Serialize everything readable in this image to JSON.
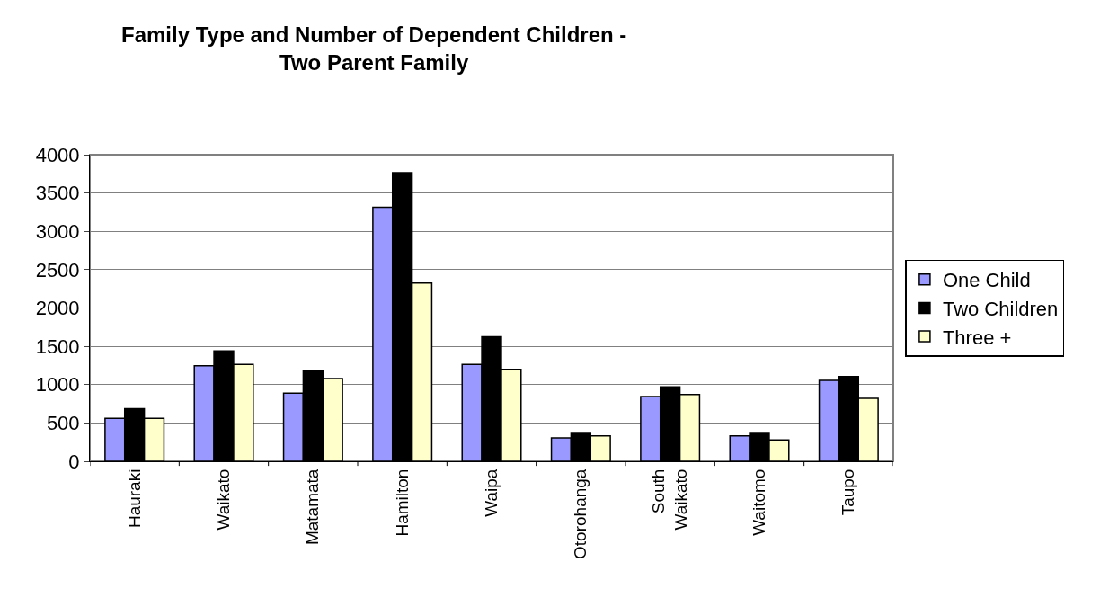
{
  "chart_data": {
    "type": "bar",
    "title": "Family Type and Number of Dependent Children -\nTwo Parent Family",
    "categories": [
      "Hauraki",
      "Waikato",
      "Matamata",
      "Hamilton",
      "Waipa",
      "Otorohanga",
      "South\nWaikato",
      "Waitomo",
      "Taupo"
    ],
    "series": [
      {
        "name": "One Child",
        "color": "#9999ff",
        "values": [
          560,
          1245,
          890,
          3315,
          1265,
          305,
          845,
          330,
          1055
        ]
      },
      {
        "name": "Two Children",
        "color": "#000000",
        "values": [
          685,
          1440,
          1175,
          3765,
          1625,
          375,
          970,
          375,
          1105
        ]
      },
      {
        "name": "Three +",
        "color": "#ffffcc",
        "values": [
          560,
          1265,
          1080,
          2325,
          1200,
          330,
          870,
          280,
          820
        ]
      }
    ],
    "ylim": [
      0,
      4000
    ],
    "yticks": [
      0,
      500,
      1000,
      1500,
      2000,
      2500,
      3000,
      3500,
      4000
    ],
    "grid": "y",
    "legend": "right"
  }
}
